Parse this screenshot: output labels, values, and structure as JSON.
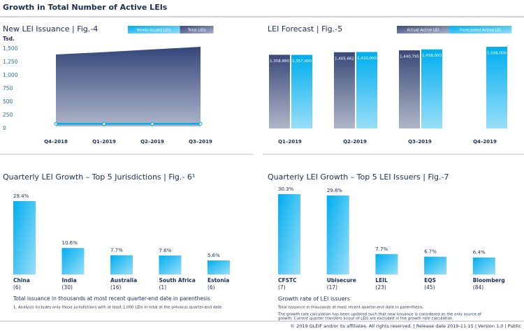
{
  "title": "Growth in Total Number of Active LEIs",
  "footer": "© 2019 GLEIF and/or its affiliates. All rights reserved.  |  Release date 2019-11-15  |  Version 1.0  |  Public",
  "chart_data": [
    {
      "type": "area",
      "title": "New LEI Issuance  |  Fig.-4",
      "y_label": "Tsd.",
      "categories": [
        "Q4–2018",
        "Q1–2019",
        "Q2–2019",
        "Q3–2019"
      ],
      "series": [
        {
          "name": "Newly Issued LEIs",
          "color": "#00aeef",
          "mark": "line",
          "values": [
            50,
            50,
            50,
            50
          ]
        },
        {
          "name": "Total LEIs",
          "color": "#34477a",
          "mark": "area",
          "values": [
            1355,
            1400,
            1450,
            1500
          ]
        }
      ],
      "ylim": [
        0,
        1500
      ],
      "yticks": [
        0,
        250,
        500,
        750,
        {
          "value": 1000,
          "label": "1,000"
        },
        {
          "value": 1250,
          "label": "1,250"
        },
        {
          "value": 1500,
          "label": "1,500"
        }
      ]
    },
    {
      "type": "bar",
      "title": "LEI Forecast  |  Fig.-5",
      "categories": [
        "Q1–2019",
        "Q2–2019",
        "Q3–2019",
        "Q4–2019"
      ],
      "series": [
        {
          "name": "Actual Active LEI",
          "color": "#3a4a78",
          "values": [
            1358880,
            1405662,
            1440795,
            null
          ],
          "value_labels": [
            "1,358,880",
            "1,405,662",
            "1,440,795",
            null
          ]
        },
        {
          "name": "Forecasted Active LEI",
          "color": "#00aeef",
          "values": [
            1357000,
            1410000,
            1458000,
            1506000
          ],
          "value_labels": [
            "1,357,000",
            "1,410,000",
            "1,458,000",
            "1,506,000"
          ]
        }
      ]
    },
    {
      "type": "bar",
      "title": "Quarterly LEI Growth – Top 5 Jurisdictions  |  Fig.- 6¹",
      "categories": [
        "China",
        "India",
        "Australia",
        "South Africa",
        "Estonia"
      ],
      "category_notes": [
        "(6)",
        "(30)",
        "(16)",
        "(1)",
        "(6)"
      ],
      "series": [
        {
          "color": "#00aeef",
          "values": [
            29.4,
            10.6,
            7.7,
            7.6,
            5.6
          ],
          "value_labels": [
            "29.4%",
            "10.6%",
            "7.7%",
            "7.6%",
            "5.6%"
          ]
        }
      ],
      "notes": [
        "Total issuance in thousands at most recent quarter-end date in parenthesis",
        "1. Analysis includes only those jurisdictions with at least 1,000 LEIs in total at the previous quarter-end date."
      ]
    },
    {
      "type": "bar",
      "title": "Quarterly LEI Growth – Top 5 LEI Issuers  |  Fig.-7",
      "categories": [
        "CFSTC",
        "Ubisecure",
        "LEIL",
        "EQS",
        "Bloomberg"
      ],
      "category_notes": [
        "(7)",
        "(17)",
        "(23)",
        "(45)",
        "(84)"
      ],
      "series": [
        {
          "color": "#00aeef",
          "values": [
            30.3,
            29.8,
            7.7,
            6.7,
            6.4
          ],
          "value_labels": [
            "30.3%",
            "29.8%",
            "7.7%",
            "6.7%",
            "6.4%"
          ]
        }
      ],
      "notes": [
        "Growth rate of LEI issuers",
        "Total issuance in thousands at most recent quarter-end date in parenthesis.",
        "The growth rate calculation has been updated such that new issuance is considered as the only source of",
        "growth. Current quarter transfers in/out of LEIs are excluded in the growth rate calculation."
      ]
    }
  ]
}
